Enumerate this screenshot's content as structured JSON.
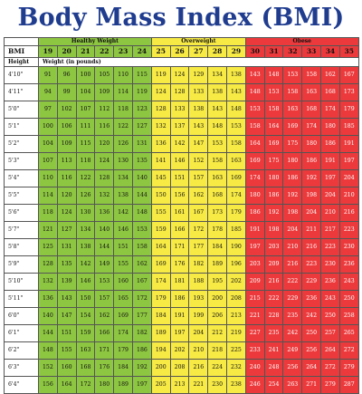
{
  "title": "Body Mass Index (BMI)",
  "labels": {
    "bmi": "BMI",
    "height": "Height",
    "weight_note": "Weight (in pounds)"
  },
  "categories": [
    {
      "name": "Healthy Weight",
      "span": 6,
      "color": "#8dc641"
    },
    {
      "name": "Overweight",
      "span": 5,
      "color": "#f7ea45"
    },
    {
      "name": "Obese",
      "span": 6,
      "color": "#ec3a3c"
    }
  ],
  "bmi_values": [
    "19",
    "20",
    "21",
    "22",
    "23",
    "24",
    "25",
    "26",
    "27",
    "28",
    "29",
    "30",
    "31",
    "32",
    "33",
    "34",
    "35"
  ],
  "rows": [
    {
      "height": "4'10\"",
      "w": [
        "91",
        "96",
        "100",
        "105",
        "110",
        "115",
        "119",
        "124",
        "129",
        "134",
        "138",
        "143",
        "148",
        "153",
        "158",
        "162",
        "167"
      ]
    },
    {
      "height": "4'11\"",
      "w": [
        "94",
        "99",
        "104",
        "109",
        "114",
        "119",
        "124",
        "128",
        "133",
        "138",
        "143",
        "148",
        "153",
        "158",
        "163",
        "168",
        "173"
      ]
    },
    {
      "height": "5'0\"",
      "w": [
        "97",
        "102",
        "107",
        "112",
        "118",
        "123",
        "128",
        "133",
        "138",
        "143",
        "148",
        "153",
        "158",
        "163",
        "168",
        "174",
        "179"
      ]
    },
    {
      "height": "5'1\"",
      "w": [
        "100",
        "106",
        "111",
        "116",
        "122",
        "127",
        "132",
        "137",
        "143",
        "148",
        "153",
        "158",
        "164",
        "169",
        "174",
        "180",
        "185"
      ]
    },
    {
      "height": "5'2\"",
      "w": [
        "104",
        "109",
        "115",
        "120",
        "126",
        "131",
        "136",
        "142",
        "147",
        "153",
        "158",
        "164",
        "169",
        "175",
        "180",
        "186",
        "191"
      ]
    },
    {
      "height": "5'3\"",
      "w": [
        "107",
        "113",
        "118",
        "124",
        "130",
        "135",
        "141",
        "146",
        "152",
        "158",
        "163",
        "169",
        "175",
        "180",
        "186",
        "191",
        "197"
      ]
    },
    {
      "height": "5'4\"",
      "w": [
        "110",
        "116",
        "122",
        "128",
        "134",
        "140",
        "145",
        "151",
        "157",
        "163",
        "169",
        "174",
        "180",
        "186",
        "192",
        "197",
        "204"
      ]
    },
    {
      "height": "5'5\"",
      "w": [
        "114",
        "120",
        "126",
        "132",
        "138",
        "144",
        "150",
        "156",
        "162",
        "168",
        "174",
        "180",
        "186",
        "192",
        "198",
        "204",
        "210"
      ]
    },
    {
      "height": "5'6\"",
      "w": [
        "118",
        "124",
        "130",
        "136",
        "142",
        "148",
        "155",
        "161",
        "167",
        "173",
        "179",
        "186",
        "192",
        "198",
        "204",
        "210",
        "216"
      ]
    },
    {
      "height": "5'7\"",
      "w": [
        "121",
        "127",
        "134",
        "140",
        "146",
        "153",
        "159",
        "166",
        "172",
        "178",
        "185",
        "191",
        "198",
        "204",
        "211",
        "217",
        "223"
      ]
    },
    {
      "height": "5'8\"",
      "w": [
        "125",
        "131",
        "138",
        "144",
        "151",
        "158",
        "164",
        "171",
        "177",
        "184",
        "190",
        "197",
        "203",
        "210",
        "216",
        "223",
        "230"
      ]
    },
    {
      "height": "5'9\"",
      "w": [
        "128",
        "135",
        "142",
        "149",
        "155",
        "162",
        "169",
        "176",
        "182",
        "189",
        "196",
        "203",
        "209",
        "216",
        "223",
        "230",
        "236"
      ]
    },
    {
      "height": "5'10\"",
      "w": [
        "132",
        "139",
        "146",
        "153",
        "160",
        "167",
        "174",
        "181",
        "188",
        "195",
        "202",
        "209",
        "216",
        "222",
        "229",
        "236",
        "243"
      ]
    },
    {
      "height": "5'11\"",
      "w": [
        "136",
        "143",
        "150",
        "157",
        "165",
        "172",
        "179",
        "186",
        "193",
        "200",
        "208",
        "215",
        "222",
        "229",
        "236",
        "243",
        "250"
      ]
    },
    {
      "height": "6'0\"",
      "w": [
        "140",
        "147",
        "154",
        "162",
        "169",
        "177",
        "184",
        "191",
        "199",
        "206",
        "213",
        "221",
        "228",
        "235",
        "242",
        "250",
        "258"
      ]
    },
    {
      "height": "6'1\"",
      "w": [
        "144",
        "151",
        "159",
        "166",
        "174",
        "182",
        "189",
        "197",
        "204",
        "212",
        "219",
        "227",
        "235",
        "242",
        "250",
        "257",
        "265"
      ]
    },
    {
      "height": "6'2\"",
      "w": [
        "148",
        "155",
        "163",
        "171",
        "179",
        "186",
        "194",
        "202",
        "210",
        "218",
        "225",
        "233",
        "241",
        "249",
        "256",
        "264",
        "272"
      ]
    },
    {
      "height": "6'3\"",
      "w": [
        "152",
        "160",
        "168",
        "176",
        "184",
        "192",
        "200",
        "208",
        "216",
        "224",
        "232",
        "240",
        "248",
        "256",
        "264",
        "272",
        "279"
      ]
    },
    {
      "height": "6'4\"",
      "w": [
        "156",
        "164",
        "172",
        "180",
        "189",
        "197",
        "205",
        "213",
        "221",
        "230",
        "238",
        "246",
        "254",
        "263",
        "271",
        "279",
        "287"
      ]
    }
  ]
}
